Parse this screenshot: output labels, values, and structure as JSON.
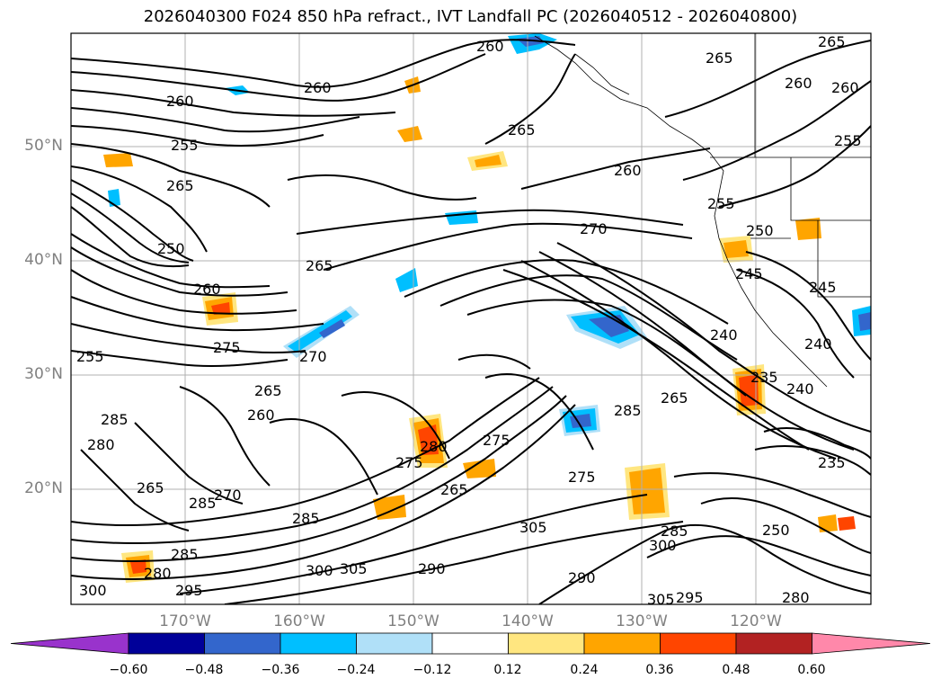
{
  "title": "2026040300 F024 850 hPa refract., IVT Landfall PC (2026040512 - 2026040800)",
  "lat_labels": [
    "50°N",
    "40°N",
    "30°N",
    "20°N"
  ],
  "lon_labels": [
    "170°W",
    "160°W",
    "150°W",
    "140°W",
    "130°W",
    "120°W"
  ],
  "colorbar": {
    "colors": [
      "#9933cc",
      "#000099",
      "#3366cc",
      "#00bfff",
      "#b0e0f8",
      "#ffffff",
      "#ffe680",
      "#ffa500",
      "#ff4500",
      "#b22222",
      "#ff88aa"
    ],
    "ticks": [
      "−0.60",
      "−0.48",
      "−0.36",
      "−0.24",
      "−0.12",
      "0.12",
      "0.24",
      "0.36",
      "0.48",
      "0.60"
    ]
  },
  "contour_labels": [
    "260",
    "265",
    "260",
    "260",
    "255",
    "265",
    "250",
    "270",
    "265",
    "260",
    "255",
    "275",
    "270",
    "265",
    "260",
    "285",
    "280",
    "285",
    "265",
    "270",
    "285",
    "280",
    "300",
    "295",
    "300",
    "305",
    "280",
    "275",
    "265",
    "275",
    "285",
    "305",
    "290",
    "285",
    "275",
    "300",
    "265",
    "255",
    "250",
    "245",
    "240",
    "235",
    "240",
    "235",
    "245",
    "250",
    "285",
    "280",
    "290",
    "305",
    "295",
    "260",
    "265",
    "260",
    "255",
    "240",
    "260",
    "265"
  ]
}
